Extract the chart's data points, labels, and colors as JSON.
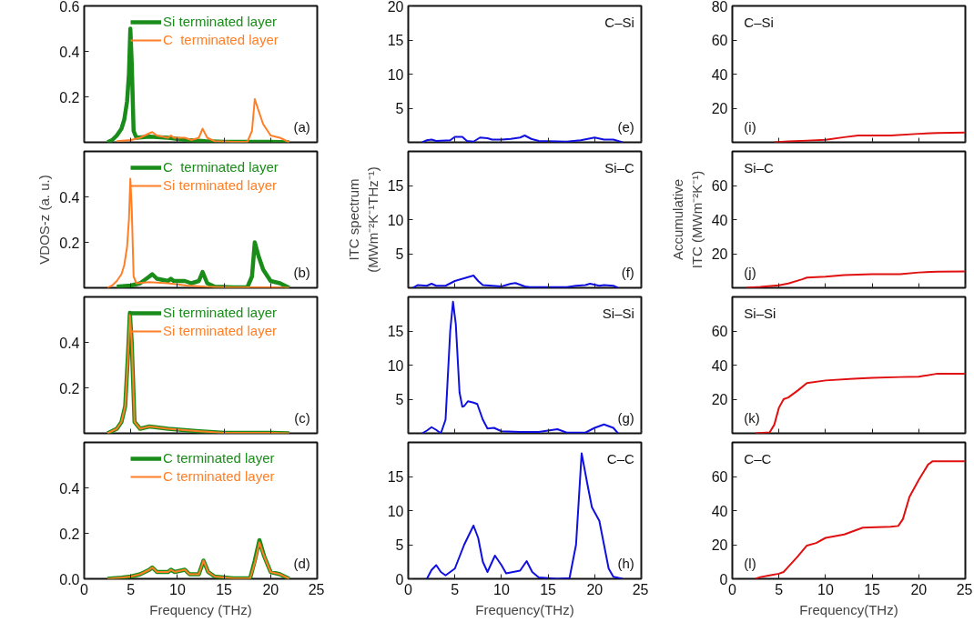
{
  "chart_data": [
    {
      "type": "line",
      "xlim": [
        0,
        25
      ],
      "xticks": [
        0,
        5,
        10,
        15,
        20,
        25
      ],
      "ylim": [
        0,
        0.6
      ],
      "yticks": [
        0.2,
        0.4,
        0.6
      ],
      "tick_labels": "y",
      "legend": "top right",
      "annotations": [
        "(a)"
      ],
      "series": [
        {
          "name": "Si terminated layer",
          "color": "#1a8c1a",
          "x": [
            2.5,
            3,
            3.5,
            4,
            4.3,
            4.6,
            4.8,
            4.95,
            5.1,
            5.3,
            5.6,
            7,
            9,
            11,
            13,
            15,
            18,
            20,
            22
          ],
          "values": [
            0,
            0.01,
            0.03,
            0.06,
            0.1,
            0.18,
            0.3,
            0.5,
            0.35,
            0.05,
            0.02,
            0.025,
            0.02,
            0.01,
            0.005,
            0.002,
            0.002,
            0.002,
            0
          ]
        },
        {
          "name": "C  terminated layer",
          "color": "#ff7f27",
          "x": [
            3.5,
            5,
            6,
            7,
            7.3,
            7.8,
            9,
            9.3,
            9.6,
            10.8,
            11.5,
            12.3,
            12.7,
            13.2,
            14,
            16,
            17.5,
            18,
            18.3,
            18.7,
            19.2,
            20,
            21,
            22
          ],
          "values": [
            0.005,
            0.01,
            0.02,
            0.04,
            0.045,
            0.03,
            0.02,
            0.03,
            0.02,
            0.02,
            0.01,
            0.02,
            0.06,
            0.02,
            0.005,
            0.002,
            0.002,
            0.05,
            0.19,
            0.14,
            0.08,
            0.03,
            0.02,
            0
          ]
        }
      ]
    },
    {
      "type": "line",
      "xlim": [
        0,
        25
      ],
      "xticks": [
        0,
        5,
        10,
        15,
        20,
        25
      ],
      "ylim": [
        0,
        20
      ],
      "yticks": [
        5,
        10,
        15,
        20
      ],
      "tick_labels": "y",
      "annotations": [
        "C–Si",
        "(e)"
      ],
      "series": [
        {
          "color": "#1010e0",
          "x": [
            1.5,
            2,
            2.5,
            3,
            4.5,
            5,
            5.8,
            6.3,
            7,
            7.7,
            8.5,
            9,
            10,
            11,
            12,
            12.5,
            13.2,
            14,
            17,
            18.5,
            20,
            21,
            22,
            23
          ],
          "values": [
            0,
            0.3,
            0.4,
            0.2,
            0.3,
            0.8,
            0.8,
            0.2,
            0.1,
            0.7,
            0.6,
            0.4,
            0.4,
            0.5,
            0.7,
            1.0,
            0.5,
            0.2,
            0.1,
            0.3,
            0.7,
            0.4,
            0.4,
            0
          ]
        }
      ]
    },
    {
      "type": "line",
      "xlim": [
        0,
        25
      ],
      "xticks": [
        0,
        5,
        10,
        15,
        20,
        25
      ],
      "ylim": [
        0,
        80
      ],
      "yticks": [
        20,
        40,
        60,
        80
      ],
      "tick_labels": "y",
      "annotations": [
        "C–Si",
        "(i)"
      ],
      "series": [
        {
          "color": "#e01010",
          "x": [
            4.5,
            6,
            8,
            10,
            12,
            13.5,
            17,
            20,
            22,
            25
          ],
          "values": [
            0,
            0.5,
            1,
            1.5,
            3,
            4,
            4,
            5,
            5.5,
            5.7
          ]
        }
      ]
    },
    {
      "type": "line",
      "xlim": [
        0,
        25
      ],
      "xticks": [
        0,
        5,
        10,
        15,
        20,
        25
      ],
      "ylim": [
        0,
        0.6
      ],
      "yticks": [
        0.2,
        0.4
      ],
      "tick_labels": "y",
      "legend": "top right",
      "ylabel": "VDOS-z (a. u.)",
      "annotations": [
        "(b)"
      ],
      "series": [
        {
          "name": "C  terminated layer",
          "color": "#1a8c1a",
          "x": [
            3.5,
            5,
            6,
            7,
            7.3,
            7.8,
            9,
            9.3,
            9.6,
            10.8,
            11.5,
            12.3,
            12.7,
            13.2,
            14,
            16,
            17.5,
            18,
            18.3,
            18.7,
            19.2,
            20,
            21,
            22
          ],
          "values": [
            0.005,
            0.01,
            0.02,
            0.05,
            0.06,
            0.04,
            0.03,
            0.04,
            0.03,
            0.03,
            0.02,
            0.03,
            0.07,
            0.02,
            0.005,
            0.002,
            0.002,
            0.05,
            0.2,
            0.14,
            0.08,
            0.03,
            0.02,
            0
          ]
        },
        {
          "name": "Si terminated layer",
          "color": "#ff7f27",
          "x": [
            2.5,
            3,
            3.5,
            4,
            4.3,
            4.6,
            4.8,
            4.95,
            5.1,
            5.3,
            5.6,
            7,
            9,
            11,
            13,
            15,
            18,
            20,
            22
          ],
          "values": [
            0,
            0.01,
            0.03,
            0.06,
            0.1,
            0.18,
            0.3,
            0.48,
            0.35,
            0.05,
            0.02,
            0.025,
            0.02,
            0.01,
            0.005,
            0.002,
            0.002,
            0.002,
            0
          ]
        }
      ]
    },
    {
      "type": "line",
      "xlim": [
        0,
        25
      ],
      "xticks": [
        0,
        5,
        10,
        15,
        20,
        25
      ],
      "ylim": [
        0,
        20
      ],
      "yticks": [
        5,
        10,
        15
      ],
      "tick_labels": "y",
      "ylabel": "ITC spectrum (MWm⁻²K⁻¹THz⁻¹)",
      "annotations": [
        "Si–C",
        "(f)"
      ],
      "series": [
        {
          "color": "#1010e0",
          "x": [
            0.5,
            1,
            2,
            2.5,
            3,
            4,
            5,
            6,
            7,
            7.5,
            8,
            9,
            10,
            11,
            11.5,
            12.5,
            13,
            17,
            18,
            19,
            19.5,
            20.5,
            21,
            22,
            22.5
          ],
          "values": [
            0,
            0.4,
            0.3,
            0.6,
            0.3,
            0.3,
            1.0,
            1.4,
            1.8,
            1.0,
            0.4,
            0.3,
            0.2,
            0.6,
            0.7,
            0.2,
            0.1,
            0.1,
            0.3,
            0.4,
            0.6,
            0.3,
            0.4,
            0.3,
            0
          ]
        }
      ]
    },
    {
      "type": "line",
      "xlim": [
        0,
        25
      ],
      "xticks": [
        0,
        5,
        10,
        15,
        20,
        25
      ],
      "ylim": [
        0,
        80
      ],
      "yticks": [
        20,
        40,
        60
      ],
      "tick_labels": "y",
      "ylabel": "Accumulative ITC (MWm⁻²K⁻¹)",
      "annotations": [
        "Si–C",
        "(j)"
      ],
      "series": [
        {
          "color": "#e01010",
          "x": [
            1.5,
            3,
            5,
            6,
            7.5,
            8,
            10,
            12,
            15,
            18,
            20,
            22,
            25
          ],
          "values": [
            0,
            0.5,
            1.5,
            2.5,
            5,
            6,
            6.5,
            7.5,
            8,
            8,
            9,
            9.5,
            9.6
          ]
        }
      ]
    },
    {
      "type": "line",
      "xlim": [
        0,
        25
      ],
      "xticks": [
        0,
        5,
        10,
        15,
        20,
        25
      ],
      "ylim": [
        0,
        0.6
      ],
      "yticks": [
        0.2,
        0.4
      ],
      "tick_labels": "y",
      "legend": "top right",
      "annotations": [
        "(c)"
      ],
      "series": [
        {
          "name": "Si terminated layer",
          "color": "#1a8c1a",
          "x": [
            2.5,
            3.5,
            4,
            4.4,
            4.7,
            4.9,
            5.1,
            5.4,
            6,
            7,
            9,
            12,
            15,
            20,
            22
          ],
          "values": [
            0,
            0.02,
            0.05,
            0.12,
            0.35,
            0.53,
            0.4,
            0.05,
            0.02,
            0.03,
            0.02,
            0.01,
            0.002,
            0.002,
            0
          ]
        },
        {
          "name": "Si terminated layer",
          "color": "#ff7f27",
          "x": [
            2.5,
            3.5,
            4,
            4.4,
            4.7,
            4.9,
            5.1,
            5.4,
            6,
            7,
            9,
            12,
            15,
            20,
            22
          ],
          "values": [
            0,
            0.02,
            0.05,
            0.12,
            0.34,
            0.52,
            0.4,
            0.05,
            0.02,
            0.03,
            0.02,
            0.01,
            0.002,
            0.002,
            0
          ]
        }
      ]
    },
    {
      "type": "line",
      "xlim": [
        0,
        25
      ],
      "xticks": [
        0,
        5,
        10,
        15,
        20,
        25
      ],
      "ylim": [
        0,
        20
      ],
      "yticks": [
        5,
        10,
        15
      ],
      "tick_labels": "y",
      "annotations": [
        "Si–Si",
        "(g)"
      ],
      "series": [
        {
          "color": "#1010e0",
          "x": [
            1.5,
            2,
            2.5,
            3,
            3.5,
            4,
            4.5,
            4.8,
            5.1,
            5.5,
            5.8,
            6,
            6.4,
            7,
            7.4,
            8,
            8.5,
            9.2,
            10,
            12,
            14,
            16,
            17,
            19,
            20,
            21,
            22,
            22.5
          ],
          "values": [
            0,
            0.4,
            0.9,
            0.5,
            0,
            2,
            15,
            19.3,
            16,
            6,
            3.9,
            4,
            4.7,
            4.5,
            4.3,
            2,
            0.7,
            0.8,
            0.3,
            0.2,
            0.2,
            0.6,
            0.1,
            0.1,
            0.8,
            1.3,
            0.8,
            0
          ]
        }
      ]
    },
    {
      "type": "line",
      "xlim": [
        0,
        25
      ],
      "xticks": [
        0,
        5,
        10,
        15,
        20,
        25
      ],
      "ylim": [
        0,
        80
      ],
      "yticks": [
        20,
        40,
        60
      ],
      "tick_labels": "y",
      "annotations": [
        "Si–Si",
        "(k)"
      ],
      "series": [
        {
          "color": "#e01010",
          "x": [
            2.5,
            4,
            4.5,
            5,
            5.5,
            6,
            7,
            8,
            10,
            13,
            15,
            18,
            20,
            22,
            25
          ],
          "values": [
            0,
            0.5,
            5,
            15,
            20,
            21,
            25,
            29.5,
            31,
            32,
            32.5,
            33,
            33.2,
            35,
            35
          ]
        }
      ]
    },
    {
      "type": "line",
      "xlim": [
        0,
        25
      ],
      "xticks": [
        0,
        5,
        10,
        15,
        20,
        25
      ],
      "ylim": [
        0,
        0.6
      ],
      "yticks": [
        {
          "value": 0,
          "label": "0.0"
        },
        0.2,
        0.4
      ],
      "xlabel": "Frequency (THz)",
      "legend": "top right",
      "annotations": [
        "(d)"
      ],
      "series": [
        {
          "name": "C terminated layer",
          "color": "#1a8c1a",
          "x": [
            2.5,
            4,
            5,
            6,
            7,
            7.3,
            7.8,
            9,
            9.3,
            9.7,
            10.8,
            11.3,
            12.3,
            12.8,
            13.3,
            14,
            16,
            17.8,
            18.3,
            18.8,
            19.3,
            20,
            21,
            22
          ],
          "values": [
            0,
            0.005,
            0.01,
            0.02,
            0.04,
            0.05,
            0.03,
            0.03,
            0.04,
            0.03,
            0.04,
            0.02,
            0.02,
            0.08,
            0.03,
            0.01,
            0.002,
            0.002,
            0.08,
            0.17,
            0.1,
            0.03,
            0.02,
            0
          ]
        },
        {
          "name": "C terminated layer",
          "color": "#ff7f27",
          "x": [
            2.5,
            4,
            5,
            6,
            7,
            7.3,
            7.8,
            9,
            9.3,
            9.7,
            10.8,
            11.3,
            12.3,
            12.8,
            13.3,
            14,
            16,
            17.8,
            18.3,
            18.8,
            19.3,
            20,
            21,
            22
          ],
          "values": [
            0,
            0.005,
            0.01,
            0.02,
            0.04,
            0.05,
            0.03,
            0.03,
            0.04,
            0.03,
            0.04,
            0.02,
            0.02,
            0.08,
            0.03,
            0.01,
            0.002,
            0.002,
            0.07,
            0.16,
            0.1,
            0.03,
            0.02,
            0
          ]
        }
      ]
    },
    {
      "type": "line",
      "xlim": [
        0,
        25
      ],
      "xticks": [
        0,
        5,
        10,
        15,
        20,
        25
      ],
      "ylim": [
        0,
        20
      ],
      "yticks": [
        0,
        5,
        10,
        15
      ],
      "xlabel": "Frequency(THz)",
      "annotations": [
        "C–C",
        "(h)"
      ],
      "series": [
        {
          "color": "#1010e0",
          "x": [
            2,
            2.5,
            3,
            3.5,
            4,
            5,
            6,
            7,
            7.5,
            8,
            8.5,
            9.3,
            10,
            10.5,
            12,
            12.7,
            13.3,
            14,
            16,
            17.3,
            18,
            18.6,
            19.2,
            19.7,
            20.5,
            21,
            21.5,
            22,
            23
          ],
          "values": [
            0,
            1.3,
            2,
            1,
            0.5,
            1.5,
            5,
            7.8,
            6,
            2.5,
            1,
            3.4,
            2,
            0.8,
            1.2,
            2.6,
            1,
            0.2,
            0,
            0.1,
            5,
            18.4,
            14,
            10.5,
            8.5,
            5,
            1.5,
            0.3,
            0
          ]
        }
      ]
    },
    {
      "type": "line",
      "xlim": [
        0,
        25
      ],
      "xticks": [
        0,
        5,
        10,
        15,
        20,
        25
      ],
      "ylim": [
        0,
        80
      ],
      "yticks": [
        0,
        20,
        40,
        60
      ],
      "xlabel": "Frequency(THz)",
      "annotations": [
        "C–C",
        "(l)"
      ],
      "series": [
        {
          "color": "#e01010",
          "x": [
            2.5,
            3,
            4,
            5,
            5.5,
            6,
            7,
            8,
            9,
            10,
            12,
            13,
            14,
            17,
            17.8,
            18.3,
            19,
            20,
            21,
            21.5,
            25
          ],
          "values": [
            0,
            1,
            2,
            3,
            4,
            7,
            13,
            19.5,
            21,
            24,
            26,
            28,
            30,
            30.5,
            31,
            35,
            48,
            58,
            67,
            69,
            69
          ]
        }
      ]
    }
  ]
}
